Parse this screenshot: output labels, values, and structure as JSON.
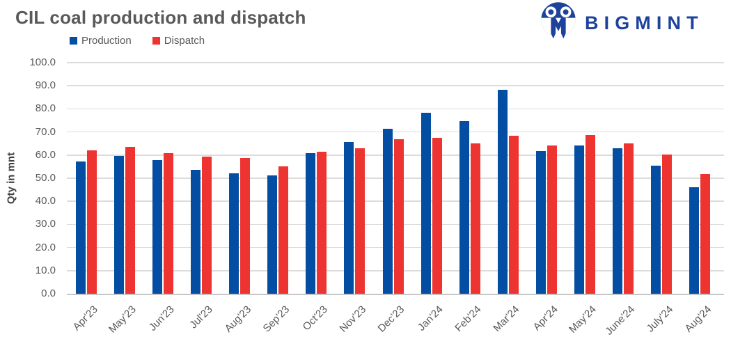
{
  "title": "CIL coal production and dispatch",
  "brand": {
    "name": "BIGMINT",
    "color": "#1c429b"
  },
  "chart_data": {
    "type": "bar",
    "title": "CIL coal production and dispatch",
    "xlabel": "",
    "ylabel": "Qty in mnt",
    "ylim": [
      0,
      100
    ],
    "ytick_step": 10,
    "yticks": [
      "100.0",
      "90.0",
      "80.0",
      "70.0",
      "60.0",
      "50.0",
      "40.0",
      "30.0",
      "20.0",
      "10.0",
      "0.0"
    ],
    "grid": true,
    "legend_position": "top-left",
    "grid_color": "#dcdcdc",
    "axis_line_color": "#c6c6c6",
    "text_color": "#595959",
    "categories": [
      "Apr'23",
      "May'23",
      "Jun'23",
      "Jul'23",
      "Aug'23",
      "Sep'23",
      "Oct'23",
      "Nov'23",
      "Dec'23",
      "Jan'24",
      "Feb'24",
      "Mar'24",
      "Apr'24",
      "May'24",
      "June'24",
      "July'24",
      "Aug'24"
    ],
    "series": [
      {
        "name": "Production",
        "color": "#034ea2",
        "values": [
          57.3,
          59.7,
          57.9,
          53.5,
          52.2,
          51.2,
          60.8,
          65.8,
          71.5,
          78.4,
          74.6,
          88.4,
          61.6,
          64.1,
          63.0,
          55.3,
          46.0
        ]
      },
      {
        "name": "Dispatch",
        "color": "#ee3431",
        "values": [
          62.0,
          63.5,
          60.9,
          59.4,
          58.7,
          55.0,
          61.4,
          63.0,
          66.8,
          67.5,
          65.1,
          68.4,
          64.1,
          68.8,
          65.0,
          60.1,
          51.9
        ]
      }
    ]
  }
}
